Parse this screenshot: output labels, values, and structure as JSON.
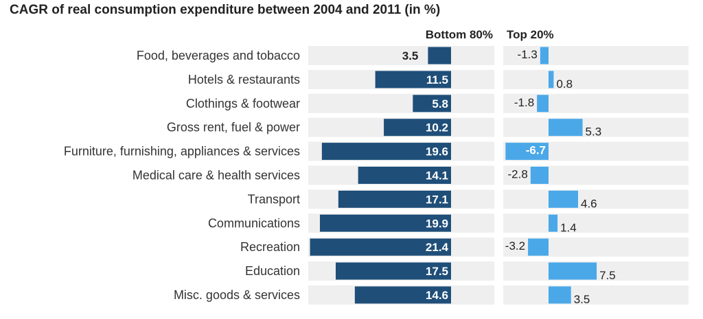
{
  "chart_data": {
    "type": "bar",
    "title": "CAGR of real consumption expenditure between 2004 and 2011 (in %)",
    "categories": [
      "Food, beverages and tobacco",
      "Hotels & restaurants",
      "Clothings & footwear",
      "Gross rent, fuel & power",
      "Furniture, furnishing, appliances & services",
      "Medical care & health services",
      "Transport",
      "Communications",
      "Recreation",
      "Education",
      "Misc. goods & services"
    ],
    "series": [
      {
        "name": "Bottom 80%",
        "color": "#1f4e79",
        "values": [
          3.5,
          11.5,
          5.8,
          10.2,
          19.6,
          14.1,
          17.1,
          19.9,
          21.4,
          17.5,
          14.6
        ]
      },
      {
        "name": "Top 20%",
        "color": "#4aa8e8",
        "values": [
          -1.3,
          0.8,
          -1.8,
          5.3,
          -6.7,
          -2.8,
          4.6,
          1.4,
          -3.2,
          7.5,
          3.5
        ]
      }
    ],
    "panel_background": "#efefef",
    "grid": false,
    "legend": "none"
  }
}
